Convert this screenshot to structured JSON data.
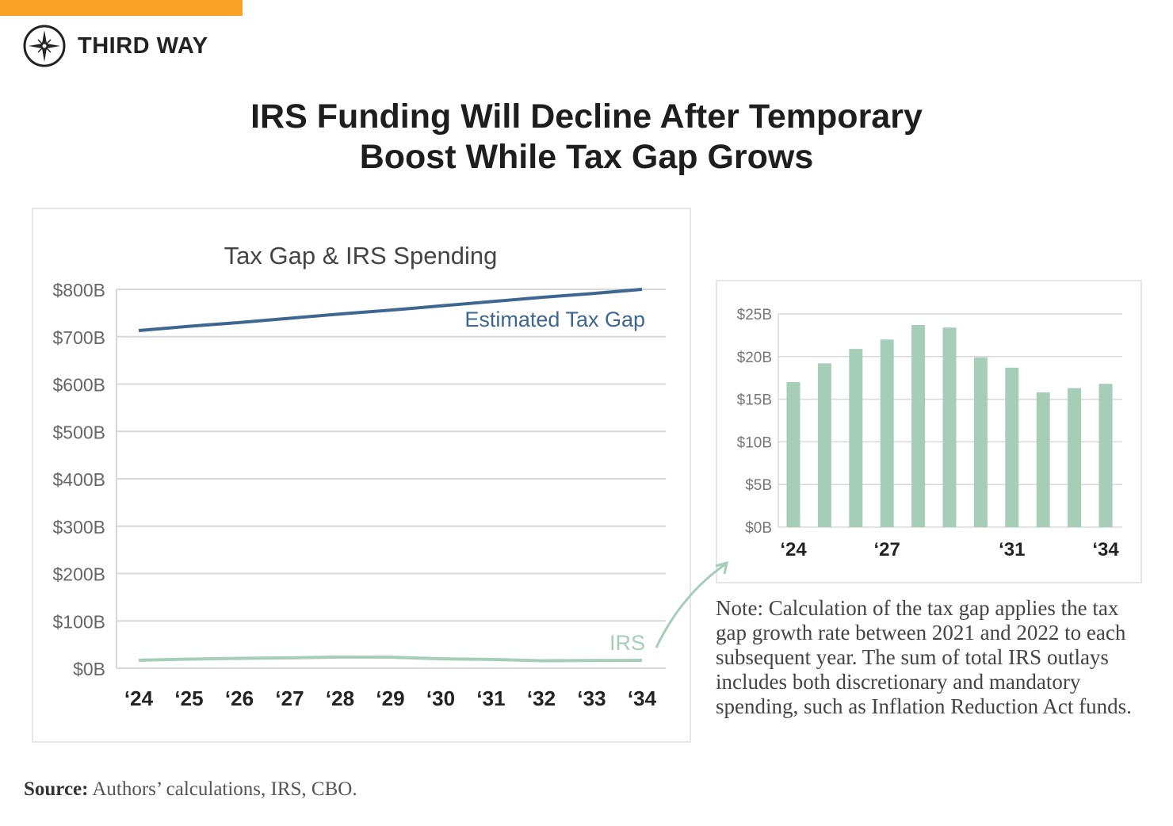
{
  "brand": {
    "name": "THIRD WAY",
    "accent": "#f9a124"
  },
  "title_line1": "IRS Funding Will Decline After Temporary",
  "title_line2": "Boost While Tax Gap Grows",
  "note": "Note: Calculation of the tax gap applies the tax gap growth rate between 2021 and 2022 to each subsequent year. The sum of total IRS outlays includes both discretionary and mandatory spending, such as Inflation Reduction Act funds.",
  "source_label": "Source:",
  "source_text": "Authors’ calculations, IRS, CBO.",
  "chart_data": [
    {
      "type": "line",
      "title": "Tax Gap & IRS Spending",
      "categories": [
        "‘24",
        "‘25",
        "‘26",
        "‘27",
        "‘28",
        "‘29",
        "‘30",
        "‘31",
        "‘32",
        "‘33",
        "‘34"
      ],
      "yticks": [
        "$0B",
        "$100B",
        "$200B",
        "$300B",
        "$400B",
        "$500B",
        "$600B",
        "$700B",
        "$800B"
      ],
      "ylim": [
        0,
        800
      ],
      "grid": true,
      "series": [
        {
          "name": "Estimated Tax Gap",
          "color": "#3e6690",
          "values": [
            713,
            722,
            730,
            739,
            748,
            756,
            765,
            774,
            783,
            791,
            800
          ]
        },
        {
          "name": "IRS",
          "color": "#a6cdb7",
          "values": [
            17,
            19.2,
            20.9,
            22,
            23.7,
            23.4,
            19.9,
            18.7,
            15.8,
            16.3,
            16.8
          ]
        }
      ]
    },
    {
      "type": "bar",
      "color": "#a6cdb7",
      "categories": [
        "2024",
        "2025",
        "2026",
        "2027",
        "2028",
        "2029",
        "2030",
        "2031",
        "2032",
        "2033",
        "2034"
      ],
      "xtick_labels": [
        "‘24",
        "",
        "",
        "‘27",
        "",
        "",
        "",
        "‘31",
        "",
        "",
        "‘34"
      ],
      "yticks": [
        "$0B",
        "$5B",
        "$10B",
        "$15B",
        "$20B",
        "$25B"
      ],
      "ylim": [
        0,
        25
      ],
      "grid": true,
      "values": [
        17.0,
        19.2,
        20.9,
        22.0,
        23.7,
        23.4,
        19.9,
        18.7,
        15.8,
        16.3,
        16.8
      ]
    }
  ]
}
